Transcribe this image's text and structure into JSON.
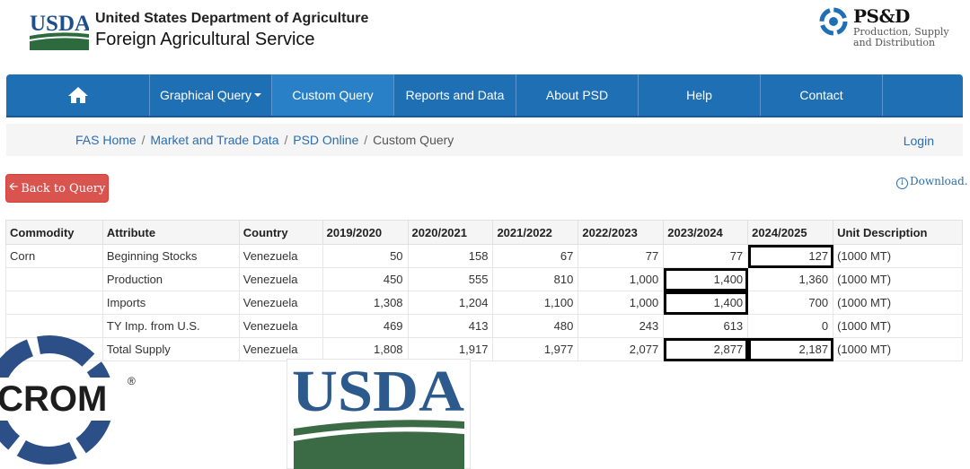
{
  "header": {
    "dept": "United States Department of Agriculture",
    "service": "Foreign Agricultural Service",
    "usda_logo_text": "USDA",
    "psd_abbr": "PS&D",
    "psd_full_line1": "Production, Supply",
    "psd_full_line2": "and Distribution"
  },
  "nav": {
    "items": [
      {
        "label": ""
      },
      {
        "label": "Graphical Query"
      },
      {
        "label": "Custom Query"
      },
      {
        "label": "Reports and Data"
      },
      {
        "label": "About PSD"
      },
      {
        "label": "Help"
      },
      {
        "label": "Contact"
      }
    ]
  },
  "breadcrumb": {
    "items": [
      "FAS Home",
      "Market and Trade Data",
      "PSD Online"
    ],
    "current": "Custom Query",
    "login": "Login"
  },
  "toolbar": {
    "back_label": "Back to Query",
    "download_label": "Download."
  },
  "table": {
    "headers": [
      "Commodity",
      "Attribute",
      "Country",
      "2019/2020",
      "2020/2021",
      "2021/2022",
      "2022/2023",
      "2023/2024",
      "2024/2025",
      "Unit Description"
    ],
    "rows": [
      {
        "commodity": "Corn",
        "attribute": "Beginning Stocks",
        "country": "Venezuela",
        "values": [
          "50",
          "158",
          "67",
          "77",
          "77",
          "127"
        ],
        "unit": "(1000 MT)"
      },
      {
        "commodity": "",
        "attribute": "Production",
        "country": "Venezuela",
        "values": [
          "450",
          "555",
          "810",
          "1,000",
          "1,400",
          "1,360"
        ],
        "unit": "(1000 MT)"
      },
      {
        "commodity": "",
        "attribute": "Imports",
        "country": "Venezuela",
        "values": [
          "1,308",
          "1,204",
          "1,100",
          "1,000",
          "1,400",
          "700"
        ],
        "unit": "(1000 MT)"
      },
      {
        "commodity": "",
        "attribute": "TY Imp. from U.S.",
        "country": "Venezuela",
        "values": [
          "469",
          "413",
          "480",
          "243",
          "613",
          "0"
        ],
        "unit": "(1000 MT)"
      },
      {
        "commodity": "",
        "attribute": "Total Supply",
        "country": "Venezuela",
        "values": [
          "1,808",
          "1,917",
          "1,977",
          "2,077",
          "2,877",
          "2,187"
        ],
        "unit": "(1000 MT)"
      }
    ]
  },
  "overlays": {
    "icrom_text": "ICROM",
    "registered": "®",
    "usda_big_text": "USDA"
  },
  "colors": {
    "nav_blue": "#1f6fb5",
    "back_red": "#d9534f",
    "usda_blue": "#2c5a8c",
    "usda_green": "#3a6b45"
  }
}
